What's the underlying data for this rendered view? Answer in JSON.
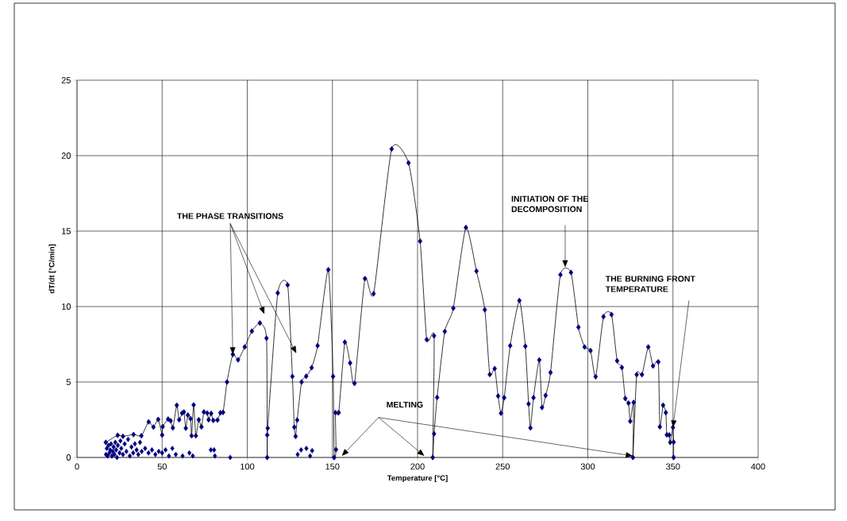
{
  "chart_data": {
    "type": "line",
    "xlabel": "Temperature [°C]",
    "ylabel": "dT/dt [°C/min]",
    "xlim": [
      0,
      400
    ],
    "xticks": [
      0,
      50,
      100,
      150,
      200,
      250,
      300,
      350,
      400
    ],
    "ylim": [
      0,
      25
    ],
    "yticks": [
      0,
      5,
      10,
      15,
      20,
      25
    ],
    "grid": true,
    "marker": "diamond",
    "annotations": [
      {
        "text": "THE PHASE TRANSITIONS",
        "x": 91.5,
        "y": 6.83
      },
      "MELTING",
      "INITIATION OF THE DECOMPOSITION",
      {
        "text": "THE BURNING FRONT TEMPERATURE",
        "x": 350.0,
        "y": 1.99
      }
    ],
    "series": [
      {
        "color": "#000080",
        "x": [
          16.9,
          23.9,
          27.0,
          33.2,
          37.8,
          42.1,
          44.9,
          47.7,
          50.0,
          50.3,
          53.5,
          55.0,
          56.3,
          58.6,
          60.0,
          61.7,
          62.8,
          63.9,
          65.1,
          66.7,
          67.3,
          68.5,
          69.8,
          71.5,
          73.1,
          74.5,
          76.5,
          77.3,
          78.8,
          80.0,
          82.5,
          84.2,
          85.8,
          88.1,
          91.5,
          94.6,
          98.5,
          102.7,
          107.4,
          111.3,
          111.7,
          111.7,
          112.0,
          117.9,
          123.7,
          126.5,
          127.6,
          128.4,
          129.3,
          131.9,
          134.6,
          137.8,
          141.3,
          147.6,
          150.4,
          151.0,
          152.1,
          151.8,
          153.7,
          157.3,
          160.4,
          163.0,
          169.1,
          174.2,
          184.8,
          194.7,
          201.5,
          205.4,
          209.7,
          208.9,
          209.7,
          211.5,
          216.0,
          221.0,
          228.4,
          234.6,
          239.5,
          242.4,
          245.3,
          247.3,
          249.0,
          250.9,
          254.4,
          259.8,
          263.3,
          265.2,
          266.3,
          268.1,
          271.5,
          273.1,
          275.2,
          278.1,
          283.9,
          290.1,
          294.5,
          298.1,
          301.6,
          304.6,
          309.2,
          313.9,
          317.2,
          320.0,
          322.0,
          323.9,
          324.9,
          326.9,
          326.5,
          328.7,
          331.8,
          335.5,
          338.3,
          341.4,
          342.3,
          344.2,
          345.8,
          346.4,
          347.8,
          348.4,
          350.0,
          350.4,
          350.4
        ],
        "values": [
          1.0,
          1.47,
          1.4,
          1.52,
          1.44,
          2.36,
          2.01,
          2.52,
          1.49,
          2.04,
          2.54,
          2.43,
          1.96,
          3.46,
          2.5,
          2.94,
          3.01,
          1.94,
          2.81,
          2.57,
          1.44,
          3.48,
          1.44,
          2.5,
          2.03,
          3.01,
          2.94,
          2.5,
          2.92,
          2.46,
          2.48,
          2.96,
          2.99,
          5.0,
          6.83,
          6.47,
          7.32,
          8.37,
          8.91,
          7.9,
          0,
          1.49,
          1.94,
          10.9,
          11.43,
          5.37,
          2.01,
          1.4,
          2.48,
          5.0,
          5.38,
          5.95,
          7.41,
          12.44,
          5.37,
          0,
          0.52,
          2.97,
          2.97,
          7.64,
          6.26,
          4.91,
          11.85,
          10.85,
          20.44,
          19.52,
          14.33,
          7.81,
          8.06,
          0,
          1.57,
          3.98,
          8.35,
          9.89,
          15.24,
          12.35,
          9.79,
          5.5,
          5.89,
          4.07,
          2.93,
          3.96,
          7.41,
          10.4,
          7.37,
          3.55,
          1.96,
          3.96,
          6.46,
          3.31,
          4.11,
          5.63,
          12.11,
          12.26,
          8.63,
          7.32,
          7.08,
          5.35,
          9.33,
          9.47,
          6.41,
          5.96,
          3.91,
          3.6,
          2.4,
          3.65,
          0,
          5.49,
          5.49,
          7.32,
          6.06,
          6.33,
          2.03,
          3.46,
          2.97,
          1.5,
          1.49,
          1.0,
          1.99,
          1.02,
          0
        ]
      },
      {
        "type": "scatter",
        "color": "#000080",
        "x": [
          17,
          17.5,
          18,
          18.5,
          19,
          19.5,
          20,
          20.5,
          21,
          21.5,
          22,
          22.5,
          23,
          23.5,
          24,
          25,
          25.5,
          26,
          27,
          28,
          29,
          30,
          31,
          32,
          33,
          34,
          35,
          36,
          37,
          38,
          40,
          42,
          44,
          46,
          48,
          50,
          52,
          54,
          56,
          58,
          62,
          66,
          68,
          78.6,
          80.5,
          81,
          90,
          129.6,
          131.6,
          134.7,
          136.9,
          138.1
        ],
        "values": [
          0.2,
          0.6,
          0.1,
          0.8,
          0.3,
          0.5,
          0.9,
          0.1,
          0.4,
          0.7,
          0.2,
          1.0,
          0.5,
          0.0,
          0.8,
          0.3,
          1.1,
          0.6,
          0.2,
          0.9,
          0.4,
          1.2,
          0.1,
          0.7,
          0.3,
          0.9,
          0.5,
          0.2,
          1.0,
          0.4,
          0.6,
          0.3,
          0.5,
          0.2,
          0.4,
          0.3,
          0.5,
          0.1,
          0.6,
          0.2,
          0.1,
          0.3,
          0.1,
          0.5,
          0.5,
          0.1,
          0,
          0.2,
          0.5,
          0.6,
          0.1,
          0.45
        ]
      }
    ]
  }
}
